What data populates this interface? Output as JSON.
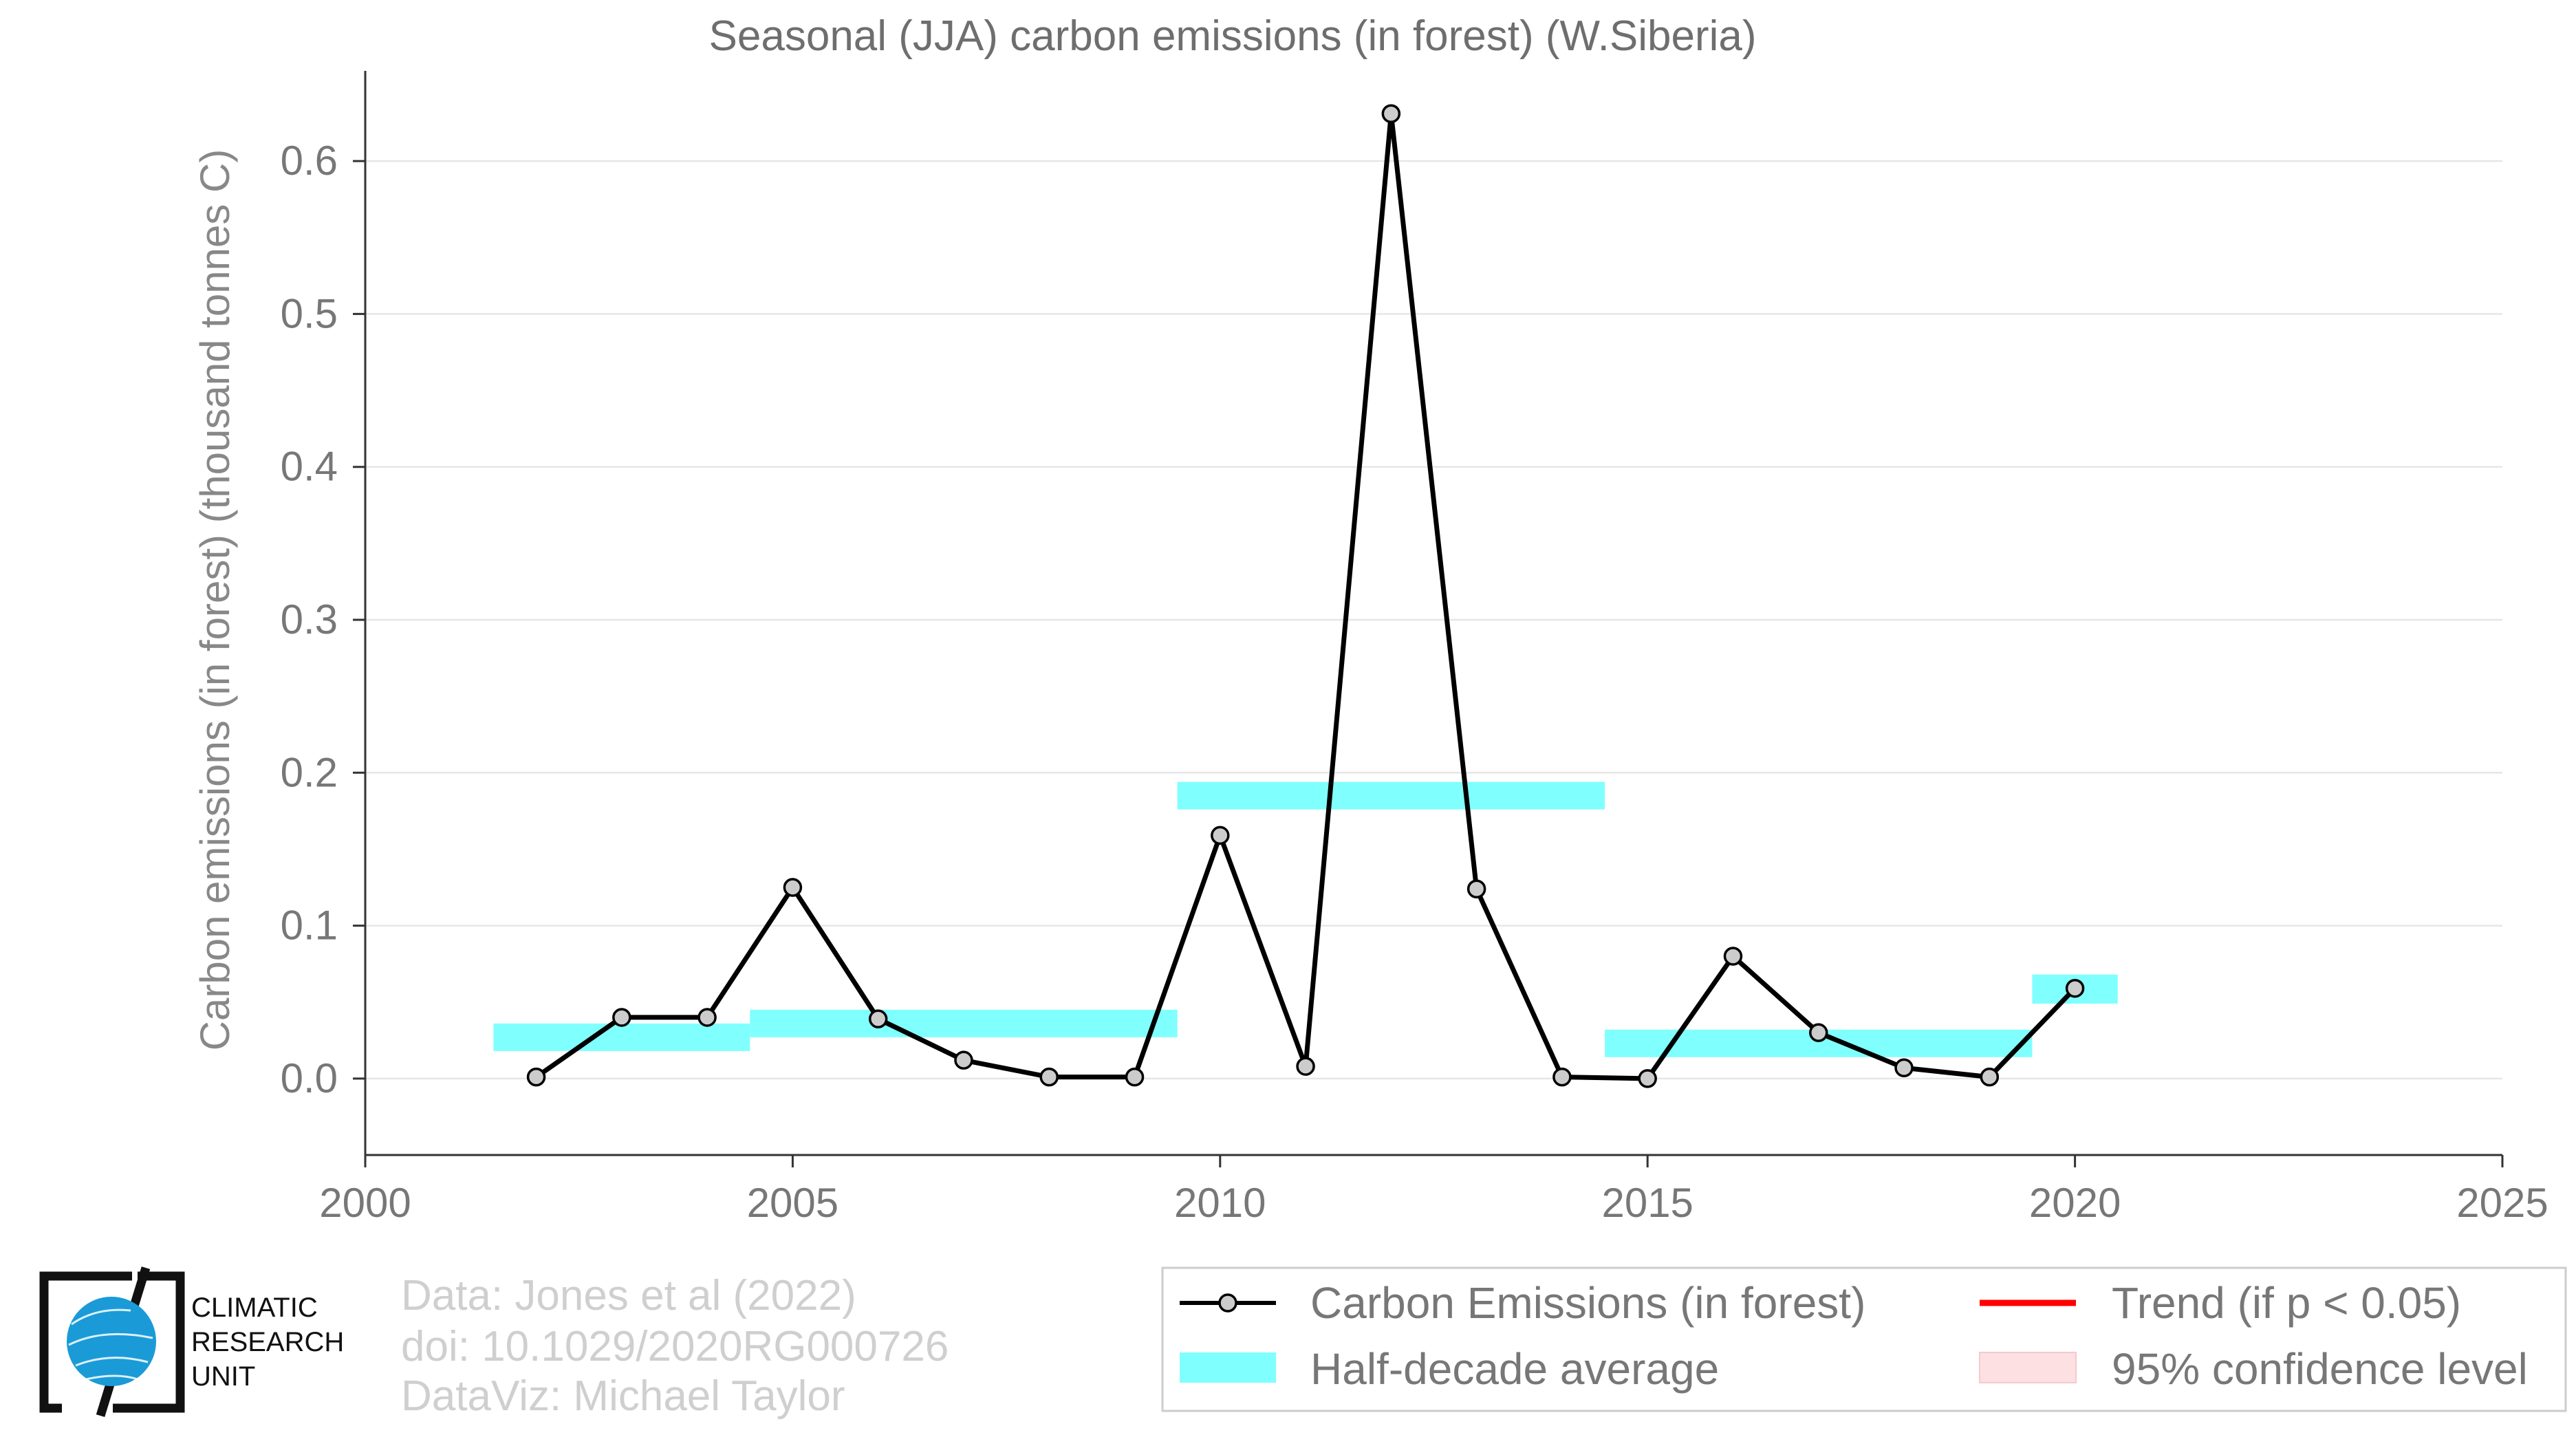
{
  "chart_data": {
    "type": "line",
    "title": "Seasonal (JJA) carbon emissions (in forest) (W.Siberia)",
    "xlabel": "",
    "ylabel": "Carbon emissions (in forest) (thousand tonnes C)",
    "xlim": [
      2000,
      2025
    ],
    "ylim": [
      -0.05,
      0.65
    ],
    "xticks": [
      "2000",
      "2005",
      "2010",
      "2015",
      "2020",
      "2025"
    ],
    "yticks": [
      "0.0",
      "0.1",
      "0.2",
      "0.3",
      "0.4",
      "0.5",
      "0.6"
    ],
    "grid": true,
    "series": [
      {
        "name": "Carbon Emissions (in forest)",
        "color": "#000000",
        "marker_fill": "#cccccc",
        "x": [
          2002,
          2003,
          2004,
          2005,
          2006,
          2007,
          2008,
          2009,
          2010,
          2011,
          2012,
          2013,
          2014,
          2015,
          2016,
          2017,
          2018,
          2019,
          2020
        ],
        "y": [
          0.001,
          0.04,
          0.04,
          0.125,
          0.039,
          0.012,
          0.001,
          0.001,
          0.159,
          0.008,
          0.631,
          0.124,
          0.001,
          0.0,
          0.08,
          0.03,
          0.007,
          0.001,
          0.059
        ]
      }
    ],
    "half_decade_average": {
      "name": "Half-decade average",
      "color": "#80ffff",
      "bands": [
        {
          "x_start": 2001.5,
          "x_end": 2004.5,
          "y_low": 0.018,
          "y_high": 0.036
        },
        {
          "x_start": 2004.5,
          "x_end": 2009.5,
          "y_low": 0.027,
          "y_high": 0.045
        },
        {
          "x_start": 2009.5,
          "x_end": 2014.5,
          "y_low": 0.176,
          "y_high": 0.194
        },
        {
          "x_start": 2014.5,
          "x_end": 2019.5,
          "y_low": 0.014,
          "y_high": 0.032
        },
        {
          "x_start": 2019.5,
          "x_end": 2020.5,
          "y_low": 0.049,
          "y_high": 0.068
        }
      ]
    },
    "legend": {
      "placement": "bottom-right",
      "entries": [
        {
          "label": "Carbon Emissions (in forest)",
          "kind": "line-marker",
          "color": "#000000"
        },
        {
          "label": "Trend (if p < 0.05)",
          "kind": "line",
          "color": "#ff0000"
        },
        {
          "label": "Half-decade average",
          "kind": "band",
          "color": "#80ffff"
        },
        {
          "label": "95% confidence level",
          "kind": "band",
          "color": "#fde0e2"
        }
      ]
    }
  },
  "credits": {
    "line1": "Data: Jones et al (2022)",
    "line2": "doi: 10.1029/2020RG000726",
    "line3": "DataViz: Michael Taylor"
  },
  "logo": {
    "line1": "CLIMATIC",
    "line2": "RESEARCH",
    "line3": "UNIT",
    "icon": "globe-icon",
    "color": "#1a9bd7"
  }
}
